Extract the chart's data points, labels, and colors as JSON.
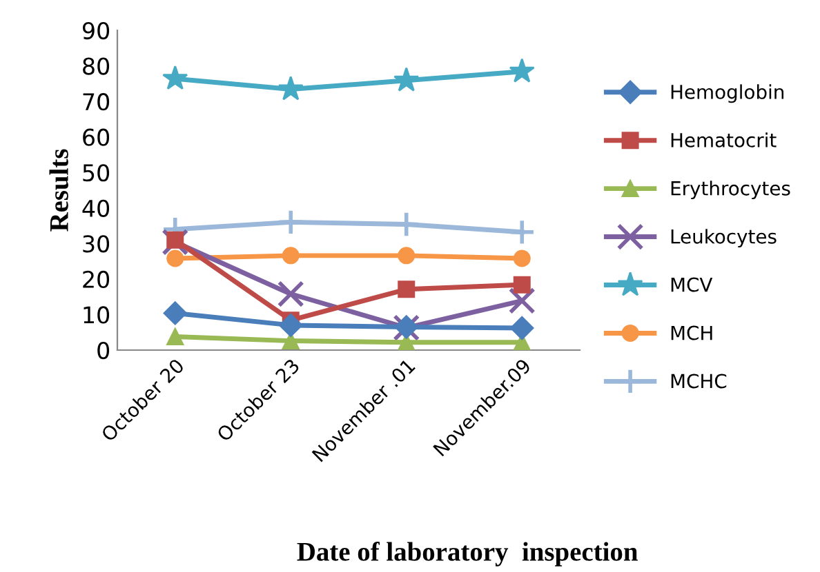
{
  "chart_data": {
    "type": "line",
    "xlabel": "Date of laboratory  inspection",
    "ylabel": "Results",
    "categories": [
      "October 20",
      "October 23",
      "November .01",
      "November.09"
    ],
    "series": [
      {
        "name": "Hemoglobin",
        "color": "#4a7ebb",
        "marker": "diamond",
        "values": [
          10.4,
          7,
          6.5,
          6.2
        ]
      },
      {
        "name": "Hematocrit",
        "color": "#be4b48",
        "marker": "square",
        "values": [
          31,
          8.4,
          17.1,
          18.4
        ]
      },
      {
        "name": "Erythrocytes",
        "color": "#98b954",
        "marker": "triangle",
        "values": [
          3.8,
          2.6,
          2.2,
          2.2
        ]
      },
      {
        "name": "Leukocytes",
        "color": "#7d60a0",
        "marker": "cross",
        "values": [
          30.4,
          15.8,
          6.3,
          13.9
        ]
      },
      {
        "name": "MCV",
        "color": "#46aac5",
        "marker": "star",
        "values": [
          76.4,
          73.4,
          75.9,
          78.4
        ]
      },
      {
        "name": "MCH",
        "color": "#f79646",
        "marker": "circle",
        "values": [
          25.8,
          26.6,
          26.6,
          25.8
        ]
      },
      {
        "name": "MCHC",
        "color": "#9bb7d9",
        "marker": "plus",
        "values": [
          34,
          36,
          35.4,
          33.2
        ]
      }
    ],
    "ylim": [
      0,
      90
    ],
    "yticks": [
      0,
      10,
      20,
      30,
      40,
      50,
      60,
      70,
      80,
      90
    ],
    "legend": "right",
    "line_style": "solid"
  }
}
